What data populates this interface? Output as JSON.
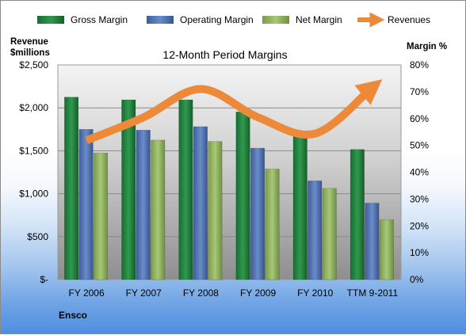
{
  "chart_data": {
    "type": "bar",
    "title": "12-Month Period Margins",
    "company": "Ensco",
    "categories": [
      "FY 2006",
      "FY 2007",
      "FY 2008",
      "FY 2009",
      "FY 2010",
      "TTM 9-2011"
    ],
    "y_left": {
      "label_line1": "Revenue",
      "label_line2": "$millions",
      "ylim": [
        0,
        2500
      ],
      "ticks": [
        0,
        500,
        1000,
        1500,
        2000,
        2500
      ],
      "tick_labels": [
        "$-",
        "$500",
        "$1,000",
        "$1,500",
        "$2,000",
        "$2,500"
      ]
    },
    "y_right": {
      "label": "Margin %",
      "ylim": [
        0,
        80
      ],
      "ticks": [
        0,
        10,
        20,
        30,
        40,
        50,
        60,
        70,
        80
      ],
      "tick_labels": [
        "0%",
        "10%",
        "20%",
        "30%",
        "40%",
        "50%",
        "60%",
        "70%",
        "80%"
      ]
    },
    "grid": true,
    "legend_position": "top",
    "series": [
      {
        "name": "Gross Margin",
        "type": "bar",
        "axis": "right",
        "color": "#217a3c",
        "values": [
          68,
          67,
          67,
          62.5,
          54.5,
          48.5
        ]
      },
      {
        "name": "Operating Margin",
        "type": "bar",
        "axis": "right",
        "color": "#4a6fb0",
        "values": [
          56,
          55.7,
          57,
          49,
          36.8,
          28.5
        ]
      },
      {
        "name": "Net Margin",
        "type": "bar",
        "axis": "right",
        "color": "#8fb25d",
        "values": [
          47.2,
          52,
          51.5,
          41.2,
          34,
          22.3
        ]
      },
      {
        "name": "Revenues",
        "type": "line",
        "axis": "left",
        "color": "#ec8a3a",
        "values": [
          1620,
          1890,
          2220,
          1890,
          1700,
          2240
        ]
      }
    ]
  }
}
